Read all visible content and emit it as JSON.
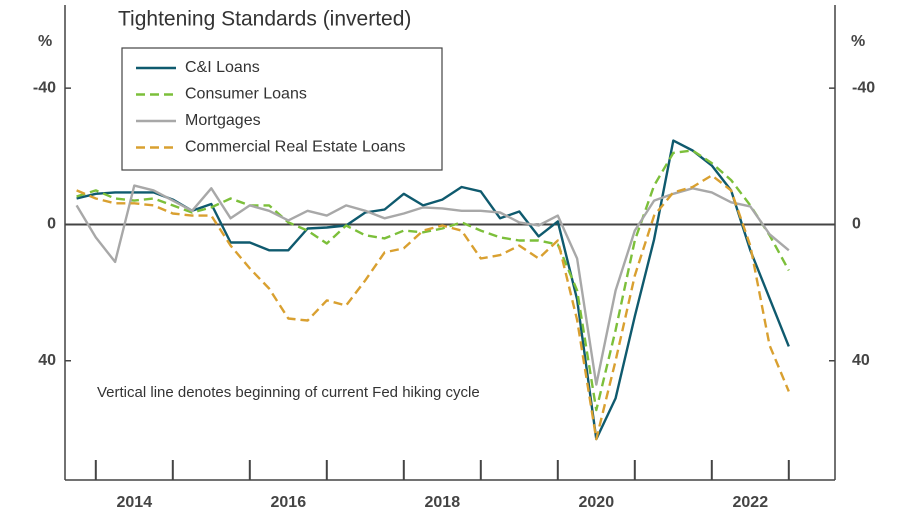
{
  "chart_data": {
    "type": "line",
    "title": "Tightening Standards (inverted)",
    "y_label": "%",
    "y2_label": "%",
    "annotation": "Vertical line denotes beginning of current Fed hiking cycle",
    "inverted": true,
    "x": [
      2013.75,
      2014,
      2014.25,
      2014.5,
      2014.75,
      2015,
      2015.25,
      2015.5,
      2015.75,
      2016,
      2016.25,
      2016.5,
      2016.75,
      2017,
      2017.25,
      2017.5,
      2017.75,
      2018,
      2018.25,
      2018.5,
      2018.75,
      2019,
      2019.25,
      2019.5,
      2019.75,
      2020,
      2020.25,
      2020.5,
      2020.75,
      2021,
      2021.25,
      2021.5,
      2021.75,
      2022,
      2022.25,
      2022.5,
      2022.75,
      2023
    ],
    "xlim": [
      2013.6,
      2023.6
    ],
    "xticks": [
      2014,
      2015,
      2016,
      2017,
      2018,
      2019,
      2020,
      2021,
      2022,
      2023
    ],
    "year_labels": [
      2014,
      2016,
      2018,
      2020,
      2022
    ],
    "ylim": [
      -60,
      75
    ],
    "yticks": [
      -40,
      0,
      40
    ],
    "y2lim": [
      -60,
      75
    ],
    "y2ticks": [
      -40,
      0,
      40
    ],
    "legend": "upper left",
    "series": [
      {
        "name": "C&I Loans",
        "color": "#0f5a6e",
        "dash": false,
        "values": [
          -7.6,
          -9,
          -9.4,
          -9.4,
          -9.4,
          -7.3,
          -4,
          -6,
          5.3,
          5.3,
          7.6,
          7.6,
          1.2,
          0.9,
          0.3,
          -3.5,
          -4.4,
          -9,
          -5.6,
          -7.3,
          -11,
          -9.7,
          -1.8,
          -3.8,
          3.5,
          -0.9,
          22,
          63,
          51,
          27,
          4.4,
          -24.6,
          -21.7,
          -17.3,
          -10,
          7.6,
          21.7,
          35.8
        ]
      },
      {
        "name": "Consumer Loans",
        "color": "#7cbf3a",
        "dash": true,
        "values": [
          -8.2,
          -10,
          -7.6,
          -7,
          -7.6,
          -5.6,
          -3.5,
          -5,
          -7.6,
          -5.6,
          -5.6,
          -0.6,
          1.8,
          5.6,
          0.3,
          3.2,
          4.1,
          1.8,
          2.3,
          1.2,
          -0.6,
          1.8,
          3.8,
          4.7,
          4.7,
          5.9,
          19.4,
          54.5,
          31,
          4.7,
          -11.4,
          -21,
          -21.7,
          -18,
          -13,
          -5.6,
          3.2,
          13.5
        ]
      },
      {
        "name": "Mortgages",
        "color": "#a8a8a8",
        "dash": false,
        "values": [
          -5.6,
          3.8,
          11,
          -11.4,
          -10,
          -7,
          -4,
          -10.6,
          -1.8,
          -5.6,
          -4,
          -1.2,
          -4,
          -2.6,
          -5.6,
          -4,
          -1.8,
          -3.2,
          -5,
          -4.7,
          -4,
          -4,
          -3.5,
          -0.6,
          0.3,
          -2.6,
          10,
          47,
          19.4,
          1.8,
          -7,
          -9,
          -10.6,
          -9.4,
          -6.5,
          -5.3,
          2.9,
          7.6
        ]
      },
      {
        "name": "Commercial Real Estate Loans",
        "color": "#d9a030",
        "dash": true,
        "values": [
          -10,
          -7.6,
          -6.2,
          -6.2,
          -5.6,
          -3.2,
          -2.6,
          -2.6,
          6.2,
          12.9,
          18.8,
          27.6,
          28.2,
          22.3,
          23.8,
          16.4,
          8.2,
          7,
          1.8,
          0.3,
          1.8,
          10,
          9,
          6.2,
          10,
          4.7,
          28,
          63,
          40,
          15,
          -2.6,
          -9.4,
          -11,
          -14.4,
          -10,
          6.2,
          35.5,
          49
        ]
      }
    ]
  }
}
